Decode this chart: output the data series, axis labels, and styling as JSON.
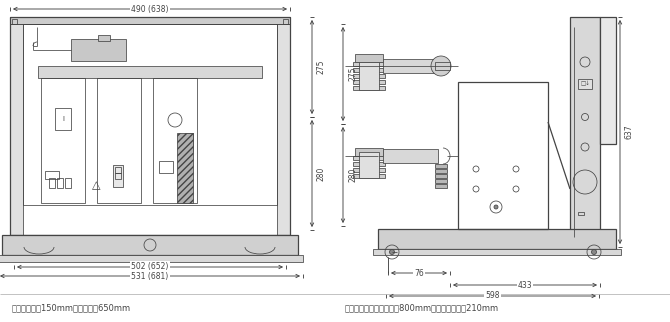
{
  "bg_color": "#ffffff",
  "line_color": "#444444",
  "text_color": "#444444",
  "footer_text_left": "一次相间距为150mm，配柜宽为650mm",
  "footer_text_right": "注：括号内尺寸为配柜宽800mm，一次相间距为210mm",
  "fig_width": 6.7,
  "fig_height": 3.22,
  "lw_main": 0.9,
  "lw_thin": 0.55,
  "lw_dim": 0.65
}
